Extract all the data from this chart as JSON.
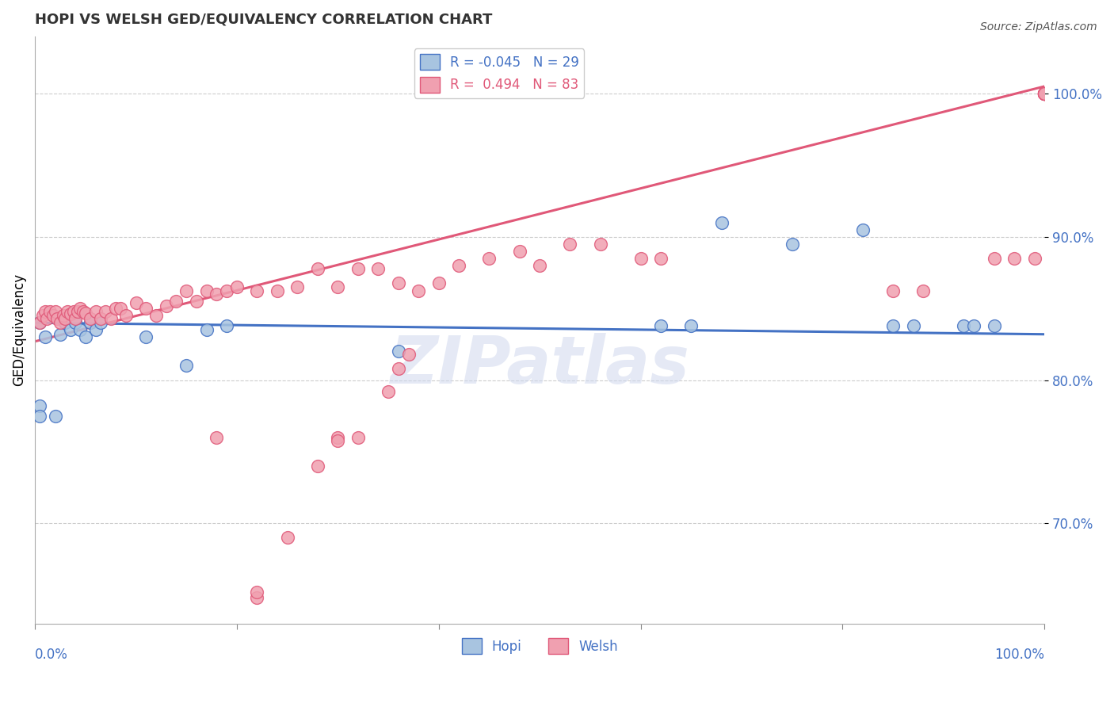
{
  "title": "HOPI VS WELSH GED/EQUIVALENCY CORRELATION CHART",
  "source": "Source: ZipAtlas.com",
  "ylabel": "GED/Equivalency",
  "hopi_R": -0.045,
  "hopi_N": 29,
  "welsh_R": 0.494,
  "welsh_N": 83,
  "hopi_color": "#a8c4e0",
  "welsh_color": "#f0a0b0",
  "hopi_edge_color": "#4472c4",
  "welsh_edge_color": "#e05878",
  "hopi_line_color": "#4472c4",
  "welsh_line_color": "#e05878",
  "background_color": "#ffffff",
  "grid_color": "#cccccc",
  "watermark": "ZIPatlas",
  "hopi_x": [
    0.005,
    0.01,
    0.02,
    0.025,
    0.03,
    0.035,
    0.04,
    0.045,
    0.05,
    0.055,
    0.06,
    0.065,
    0.11,
    0.15,
    0.17,
    0.36,
    0.62,
    0.65,
    0.68,
    0.75,
    0.82,
    0.85,
    0.87,
    0.92,
    0.93,
    0.95,
    0.19,
    0.005,
    0.005
  ],
  "hopi_y": [
    0.782,
    0.83,
    0.775,
    0.832,
    0.84,
    0.835,
    0.84,
    0.835,
    0.83,
    0.84,
    0.835,
    0.84,
    0.83,
    0.81,
    0.835,
    0.82,
    0.838,
    0.838,
    0.91,
    0.895,
    0.905,
    0.838,
    0.838,
    0.838,
    0.838,
    0.838,
    0.838,
    0.84,
    0.775
  ],
  "welsh_x": [
    0.005,
    0.008,
    0.01,
    0.012,
    0.015,
    0.018,
    0.02,
    0.022,
    0.025,
    0.028,
    0.03,
    0.032,
    0.035,
    0.038,
    0.04,
    0.042,
    0.045,
    0.048,
    0.05,
    0.055,
    0.06,
    0.065,
    0.07,
    0.075,
    0.08,
    0.085,
    0.09,
    0.1,
    0.11,
    0.12,
    0.13,
    0.14,
    0.15,
    0.16,
    0.17,
    0.18,
    0.19,
    0.2,
    0.22,
    0.24,
    0.26,
    0.28,
    0.3,
    0.32,
    0.34,
    0.36,
    0.38,
    0.4,
    0.42,
    0.45,
    0.48,
    0.5,
    0.53,
    0.56,
    0.6,
    0.37,
    0.36,
    0.35,
    0.95,
    0.97,
    0.99,
    1.0,
    1.0,
    1.0,
    1.0,
    1.0,
    1.0,
    1.0,
    1.0,
    1.0,
    1.0,
    1.0,
    0.85,
    0.88,
    0.3,
    0.3,
    0.32,
    0.62,
    0.28,
    0.25,
    0.22,
    0.22,
    0.18
  ],
  "welsh_y": [
    0.84,
    0.845,
    0.848,
    0.843,
    0.848,
    0.845,
    0.848,
    0.843,
    0.84,
    0.845,
    0.843,
    0.848,
    0.846,
    0.848,
    0.843,
    0.848,
    0.85,
    0.848,
    0.847,
    0.843,
    0.848,
    0.843,
    0.848,
    0.843,
    0.85,
    0.85,
    0.845,
    0.854,
    0.85,
    0.845,
    0.852,
    0.855,
    0.862,
    0.855,
    0.862,
    0.86,
    0.862,
    0.865,
    0.862,
    0.862,
    0.865,
    0.878,
    0.865,
    0.878,
    0.878,
    0.868,
    0.862,
    0.868,
    0.88,
    0.885,
    0.89,
    0.88,
    0.895,
    0.895,
    0.885,
    0.818,
    0.808,
    0.792,
    0.885,
    0.885,
    0.885,
    1.0,
    1.0,
    1.0,
    1.0,
    1.0,
    1.0,
    1.0,
    1.0,
    1.0,
    1.0,
    1.0,
    0.862,
    0.862,
    0.76,
    0.758,
    0.76,
    0.885,
    0.74,
    0.69,
    0.648,
    0.652,
    0.76
  ],
  "hopi_slope": -0.008,
  "hopi_intercept": 0.84,
  "welsh_slope": 0.178,
  "welsh_intercept": 0.827,
  "xlim": [
    0.0,
    1.0
  ],
  "ylim": [
    0.63,
    1.04
  ],
  "yticks": [
    0.7,
    0.8,
    0.9,
    1.0
  ],
  "ytick_labels": [
    "70.0%",
    "80.0%",
    "90.0%",
    "100.0%"
  ]
}
